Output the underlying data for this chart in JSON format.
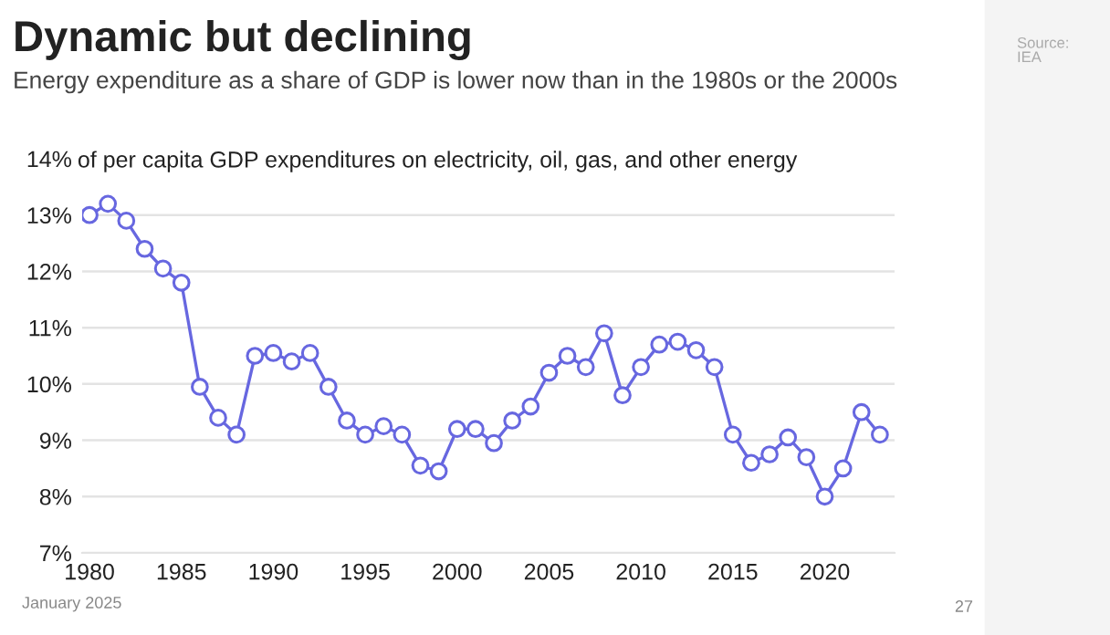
{
  "chart_data": {
    "type": "line",
    "title": "Dynamic but declining",
    "subtitle": "Energy expenditure as a share of GDP is lower now than in the 1980s or the 2000s",
    "annotations": [
      "Source:\nIEA",
      "January 2025",
      "27"
    ],
    "x": [
      1980,
      1981,
      1982,
      1983,
      1984,
      1985,
      1986,
      1987,
      1988,
      1989,
      1990,
      1991,
      1992,
      1993,
      1994,
      1995,
      1996,
      1997,
      1998,
      1999,
      2000,
      2001,
      2002,
      2003,
      2004,
      2005,
      2006,
      2007,
      2008,
      2009,
      2010,
      2011,
      2012,
      2013,
      2014,
      2015,
      2016,
      2017,
      2018,
      2019,
      2020,
      2021,
      2022,
      2023
    ],
    "series": [
      {
        "color": "#6767e0",
        "values": [
          13.0,
          13.2,
          12.9,
          12.4,
          12.05,
          11.8,
          9.95,
          9.4,
          9.1,
          10.5,
          10.55,
          10.4,
          10.55,
          9.95,
          9.35,
          9.1,
          9.25,
          9.1,
          8.55,
          8.45,
          9.2,
          9.2,
          8.95,
          9.35,
          9.6,
          10.2,
          10.5,
          10.3,
          10.9,
          9.8,
          10.3,
          10.7,
          10.75,
          10.6,
          10.3,
          9.1,
          8.6,
          8.75,
          9.05,
          8.7,
          8.0,
          8.5,
          9.5,
          9.1
        ]
      }
    ],
    "xlim": [
      1979.6,
      2023.8
    ],
    "xticks": [
      1980,
      1985,
      1990,
      1995,
      2000,
      2005,
      2010,
      2015,
      2020
    ],
    "ylim": [
      7,
      14
    ],
    "yticks": [
      {
        "value": 7,
        "label": "7%"
      },
      {
        "value": 8,
        "label": "8%"
      },
      {
        "value": 9,
        "label": "9%"
      },
      {
        "value": 10,
        "label": "10%"
      },
      {
        "value": 11,
        "label": "11%"
      },
      {
        "value": 12,
        "label": "12%"
      },
      {
        "value": 13,
        "label": "13%"
      },
      {
        "value": 14,
        "label": "14%"
      }
    ],
    "ylabel": "of per capita GDP expenditures on electricity, oil, gas, and other energy",
    "grid": "y",
    "legend": false,
    "marker": "circle",
    "line_style": "solid"
  }
}
